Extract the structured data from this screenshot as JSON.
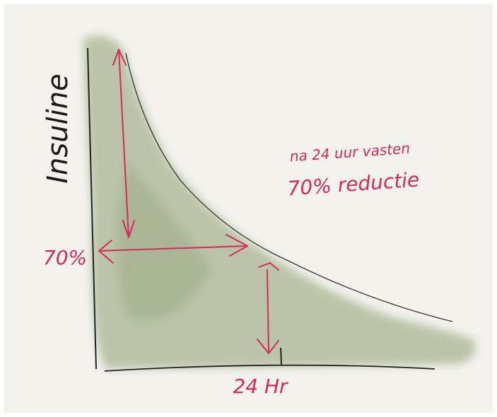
{
  "axis_label": "Insuline",
  "note_line1": "na 24 uur vasten",
  "note_line2": "70% reductie",
  "left_label": "70%",
  "bottom_label": "24 Hr"
}
